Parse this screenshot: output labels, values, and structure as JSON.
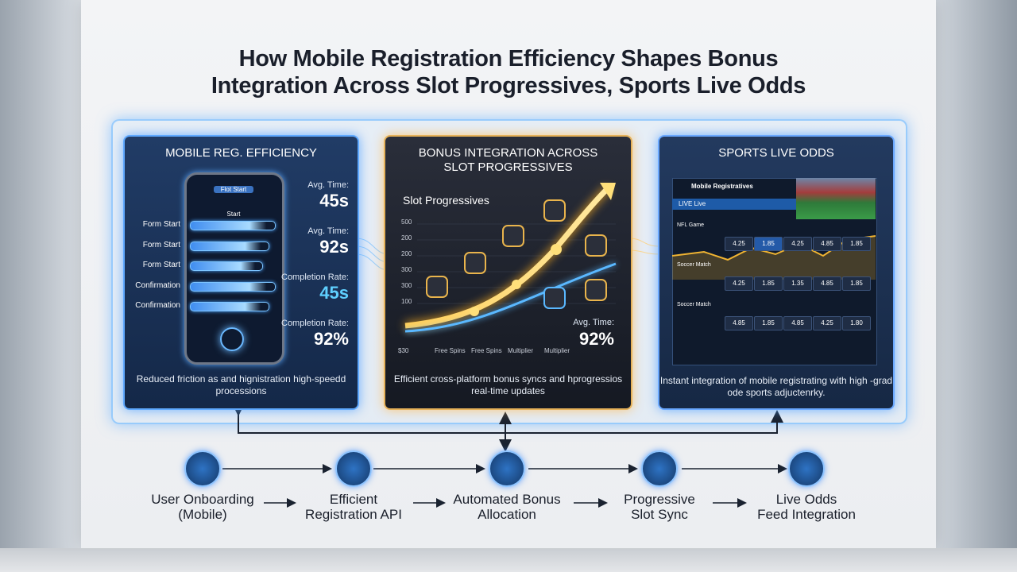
{
  "title": {
    "line1": "How Mobile Registration Efficiency Shapes Bonus",
    "line2": "Integration Across Slot Progressives, Sports Live Odds"
  },
  "panels": [
    {
      "title": "MOBILE REG. EFFICIENCY",
      "phone_header": "Flot Start",
      "phone_sub": "Start",
      "steps": [
        "Form Start",
        "Form Start",
        "Form Start",
        "Confirmation",
        "Confirmation"
      ],
      "stats": [
        {
          "label": "Avg. Time:",
          "value": "45s"
        },
        {
          "label": "Avg. Time:",
          "value": "92s"
        },
        {
          "label": "Completion Rate:",
          "value": "45s"
        },
        {
          "label": "Completion Rate:",
          "value": "92%"
        }
      ],
      "caption": "Reduced friction as and hignistration high-speedd processions"
    },
    {
      "title": "BONUS INTEGRATION ACROSS SLOT PROGRESSIVES",
      "subtitle": "Slot Progressives",
      "y_labels": [
        "500",
        "200",
        "200",
        "300",
        "300",
        "100"
      ],
      "x_labels": [
        "$30",
        "Free Spins",
        "Free Spins",
        "Multiplier",
        "Multiplier"
      ],
      "stat": {
        "label": "Avg. Time:",
        "value": "92%"
      },
      "caption": "Efficient cross-platform bonus syncs and hprogressios real-time updates"
    },
    {
      "title": "SPORTS LIVE ODDS",
      "board_title": "Mobile Registratives",
      "tab": "LIVE Live",
      "games": [
        {
          "name": "NFL Game",
          "odds": [
            "4.25",
            "1.85",
            "4.25",
            "4.85",
            "1.85"
          ]
        },
        {
          "name": "Soccer Match",
          "odds": [
            "4.25",
            "1.85",
            "1.35",
            "4.85",
            "1.85"
          ]
        },
        {
          "name": "Soccer Match",
          "odds": [
            "4.85",
            "1.85",
            "4.85",
            "4.25",
            "1.80"
          ]
        }
      ],
      "caption": "Instant integration of mobile registrating with high -grad ode sports adjuctenrky."
    }
  ],
  "flow": [
    [
      "User Onboarding",
      "(Mobile)"
    ],
    [
      "Efficient",
      "Registration API"
    ],
    [
      "Automated Bonus",
      "Allocation"
    ],
    [
      "Progressive",
      "Slot Sync"
    ],
    [
      "Live Odds",
      "Feed Integration"
    ]
  ]
}
